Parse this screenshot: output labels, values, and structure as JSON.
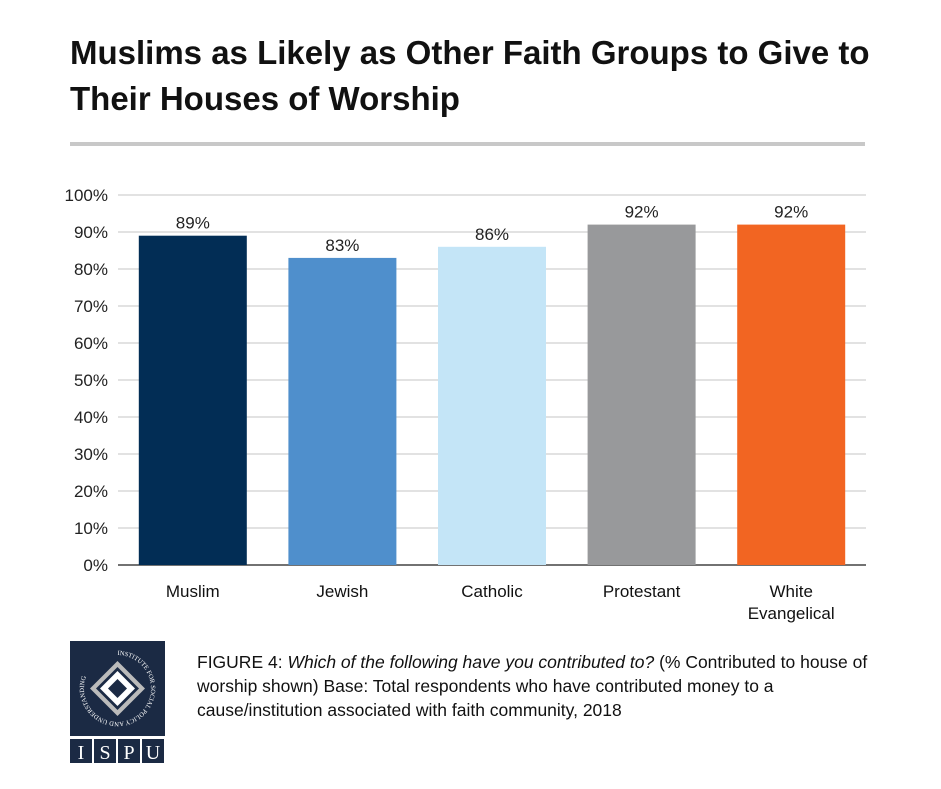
{
  "title": "Muslims as Likely as Other Faith Groups to Give to Their Houses of Worship",
  "chart_data": {
    "type": "bar",
    "title": "Muslims as Likely as Other Faith Groups to Give to Their Houses of Worship",
    "categories": [
      "Muslim",
      "Jewish",
      "Catholic",
      "Protestant",
      "White Evangelical"
    ],
    "category_lines": [
      [
        "Muslim"
      ],
      [
        "Jewish"
      ],
      [
        "Catholic"
      ],
      [
        "Protestant"
      ],
      [
        "White",
        "Evangelical"
      ]
    ],
    "values": [
      89,
      83,
      86,
      92,
      92
    ],
    "data_labels": [
      "89%",
      "83%",
      "86%",
      "92%",
      "92%"
    ],
    "colors": [
      "#022d55",
      "#4f8fcc",
      "#c4e5f7",
      "#98999b",
      "#f26522"
    ],
    "yticks": [
      "0%",
      "10%",
      "20%",
      "30%",
      "40%",
      "50%",
      "60%",
      "70%",
      "80%",
      "90%",
      "100%"
    ],
    "ylim": [
      0,
      100
    ],
    "xlabel": "",
    "ylabel": "",
    "grid": true,
    "legend": "none"
  },
  "caption": {
    "label": "FIGURE 4",
    "question": "Which of the following have you contributed to?",
    "rest": " (% Contributed to house of worship shown) Base: Total respondents who have contributed money to a cause/institution associated with faith community, 2018"
  },
  "logo": {
    "ring_text": "INSTITUTE FOR SOCIAL POLICY AND UNDERSTANDING",
    "letters": [
      "I",
      "S",
      "P",
      "U"
    ]
  }
}
